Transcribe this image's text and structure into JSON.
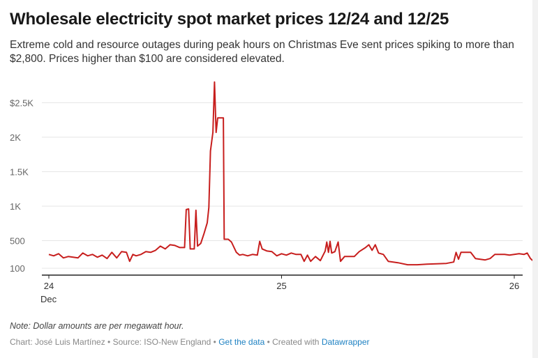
{
  "chart_data": {
    "type": "line",
    "title": "Wholesale electricity spot market prices 12/24 and 12/25",
    "subtitle": "Extreme cold and resource outages during peak hours on Christmas Eve sent prices spiking to more than $2,800. Prices higher than $100 are considered elevated.",
    "xlabel": "",
    "ylabel": "",
    "ylim": [
      0,
      2900
    ],
    "xlim": [
      "12/24 00:00",
      "12/26 00:00"
    ],
    "grid": true,
    "color": "#c71e1d",
    "y_ticks": [
      {
        "v": 100,
        "label": "100"
      },
      {
        "v": 500,
        "label": "500"
      },
      {
        "v": 1000,
        "label": "1K"
      },
      {
        "v": 1500,
        "label": "1.5K"
      },
      {
        "v": 2000,
        "label": "2K"
      },
      {
        "v": 2500,
        "label": "$2.5K"
      }
    ],
    "x_ticks": [
      {
        "t": "12/24 00:00",
        "label": "24",
        "sub": "Dec"
      },
      {
        "t": "12/25 00:00",
        "label": "25",
        "sub": ""
      },
      {
        "t": "12/26 00:00",
        "label": "26",
        "sub": ""
      }
    ],
    "series": [
      {
        "points": [
          [
            "12/24 00:00",
            300
          ],
          [
            "12/24 00:30",
            280
          ],
          [
            "12/24 01:00",
            310
          ],
          [
            "12/24 01:30",
            250
          ],
          [
            "12/24 02:00",
            270
          ],
          [
            "12/24 02:30",
            260
          ],
          [
            "12/24 03:00",
            250
          ],
          [
            "12/24 03:30",
            320
          ],
          [
            "12/24 04:00",
            280
          ],
          [
            "12/24 04:30",
            300
          ],
          [
            "12/24 05:00",
            260
          ],
          [
            "12/24 05:30",
            290
          ],
          [
            "12/24 06:00",
            240
          ],
          [
            "12/24 06:30",
            330
          ],
          [
            "12/24 07:00",
            250
          ],
          [
            "12/24 07:30",
            340
          ],
          [
            "12/24 08:00",
            330
          ],
          [
            "12/24 08:20",
            200
          ],
          [
            "12/24 08:40",
            300
          ],
          [
            "12/24 09:00",
            280
          ],
          [
            "12/24 09:30",
            300
          ],
          [
            "12/24 10:00",
            340
          ],
          [
            "12/24 10:30",
            330
          ],
          [
            "12/24 11:00",
            360
          ],
          [
            "12/24 11:30",
            420
          ],
          [
            "12/24 12:00",
            380
          ],
          [
            "12/24 12:30",
            440
          ],
          [
            "12/24 13:00",
            430
          ],
          [
            "12/24 13:30",
            400
          ],
          [
            "12/24 14:00",
            400
          ],
          [
            "12/24 14:10",
            950
          ],
          [
            "12/24 14:25",
            960
          ],
          [
            "12/24 14:35",
            380
          ],
          [
            "12/24 15:00",
            380
          ],
          [
            "12/24 15:10",
            940
          ],
          [
            "12/24 15:20",
            420
          ],
          [
            "12/24 15:40",
            460
          ],
          [
            "12/24 16:00",
            600
          ],
          [
            "12/24 16:20",
            760
          ],
          [
            "12/24 16:30",
            980
          ],
          [
            "12/24 16:40",
            1800
          ],
          [
            "12/24 16:55",
            2070
          ],
          [
            "12/24 17:05",
            2800
          ],
          [
            "12/24 17:15",
            2070
          ],
          [
            "12/24 17:25",
            2280
          ],
          [
            "12/24 18:00",
            2280
          ],
          [
            "12/24 18:05",
            520
          ],
          [
            "12/24 18:30",
            520
          ],
          [
            "12/24 18:50",
            480
          ],
          [
            "12/24 19:20",
            330
          ],
          [
            "12/24 19:40",
            290
          ],
          [
            "12/24 20:00",
            300
          ],
          [
            "12/24 20:30",
            280
          ],
          [
            "12/24 21:00",
            300
          ],
          [
            "12/24 21:30",
            290
          ],
          [
            "12/24 21:45",
            490
          ],
          [
            "12/24 22:00",
            380
          ],
          [
            "12/24 22:30",
            350
          ],
          [
            "12/24 23:00",
            340
          ],
          [
            "12/24 23:30",
            280
          ],
          [
            "12/25 00:00",
            310
          ],
          [
            "12/25 00:30",
            290
          ],
          [
            "12/25 01:00",
            320
          ],
          [
            "12/25 01:30",
            300
          ],
          [
            "12/25 02:00",
            300
          ],
          [
            "12/25 02:20",
            200
          ],
          [
            "12/25 02:40",
            290
          ],
          [
            "12/25 03:00",
            200
          ],
          [
            "12/25 03:30",
            270
          ],
          [
            "12/25 04:00",
            210
          ],
          [
            "12/25 04:30",
            350
          ],
          [
            "12/25 04:40",
            480
          ],
          [
            "12/25 04:50",
            330
          ],
          [
            "12/25 05:00",
            490
          ],
          [
            "12/25 05:10",
            320
          ],
          [
            "12/25 05:30",
            340
          ],
          [
            "12/25 05:50",
            480
          ],
          [
            "12/25 06:05",
            200
          ],
          [
            "12/25 06:30",
            270
          ],
          [
            "12/25 07:30",
            270
          ],
          [
            "12/25 08:00",
            340
          ],
          [
            "12/25 08:40",
            400
          ],
          [
            "12/25 09:00",
            440
          ],
          [
            "12/25 09:20",
            360
          ],
          [
            "12/25 09:40",
            440
          ],
          [
            "12/25 10:00",
            320
          ],
          [
            "12/25 10:30",
            300
          ],
          [
            "12/25 11:00",
            200
          ],
          [
            "12/25 12:00",
            180
          ],
          [
            "12/25 13:00",
            150
          ],
          [
            "12/25 14:00",
            150
          ],
          [
            "12/25 15:00",
            160
          ],
          [
            "12/25 16:00",
            165
          ],
          [
            "12/25 17:00",
            170
          ],
          [
            "12/25 17:45",
            190
          ],
          [
            "12/25 18:00",
            330
          ],
          [
            "12/25 18:15",
            230
          ],
          [
            "12/25 18:30",
            330
          ],
          [
            "12/25 19:30",
            330
          ],
          [
            "12/25 20:00",
            240
          ],
          [
            "12/25 21:00",
            220
          ],
          [
            "12/25 21:30",
            240
          ],
          [
            "12/25 22:00",
            300
          ],
          [
            "12/25 23:00",
            300
          ],
          [
            "12/25 23:30",
            290
          ],
          [
            "12/26 00:00",
            300
          ],
          [
            "12/26 00:30",
            310
          ],
          [
            "12/26 01:00",
            300
          ],
          [
            "12/26 01:20",
            320
          ],
          [
            "12/26 01:40",
            240
          ],
          [
            "12/26 02:00",
            200
          ],
          [
            "12/26 02:30",
            180
          ],
          [
            "12/26 03:00",
            170
          ],
          [
            "12/26 03:30",
            160
          ],
          [
            "12/26 04:00",
            150
          ]
        ]
      }
    ]
  },
  "footer": {
    "note": "Note: Dollar amounts are per megawatt hour.",
    "credit_prefix": "Chart: José Luis Martínez • Source: ISO-New England • ",
    "get_data": "Get the data",
    "created_with": " • Created with ",
    "datawrapper": "Datawrapper"
  }
}
